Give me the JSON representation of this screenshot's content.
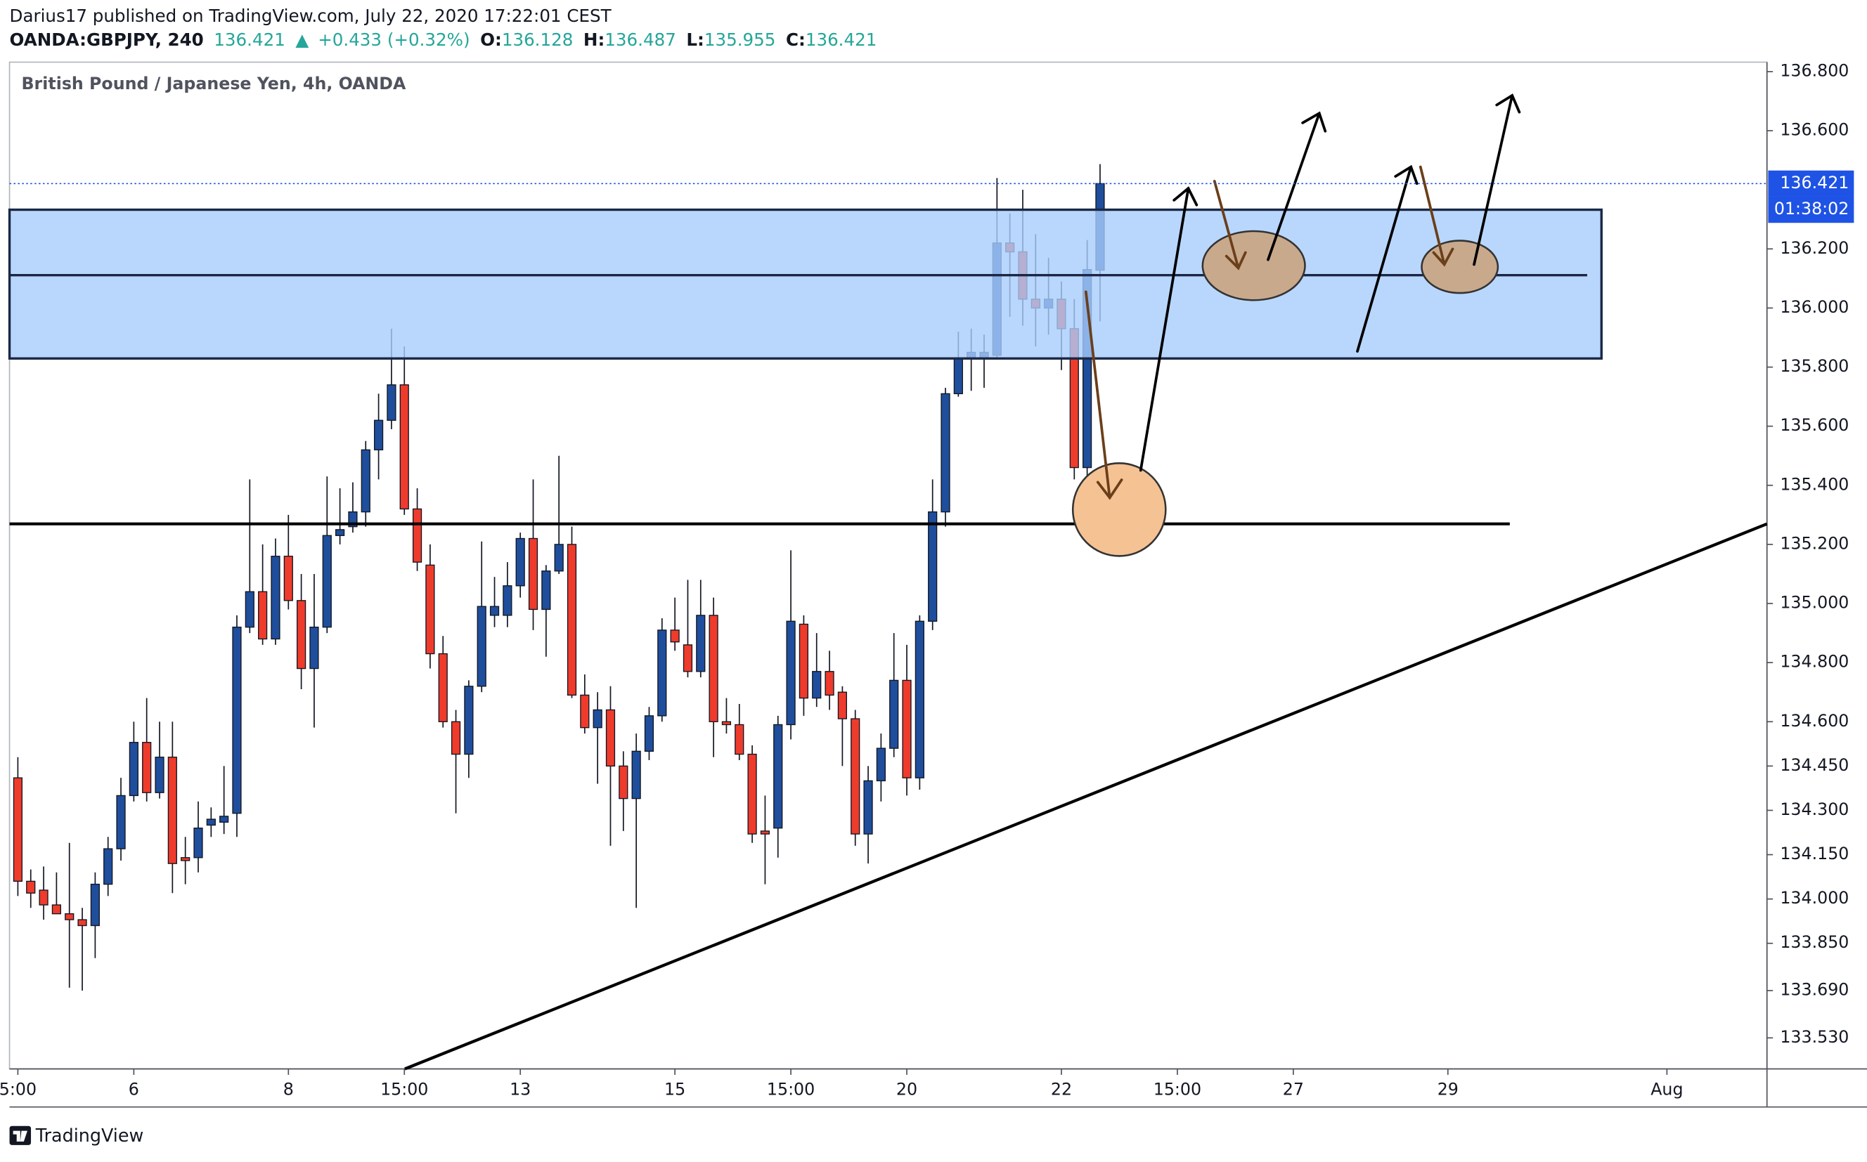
{
  "header": {
    "line1": "Darius17 published on TradingView.com, July 22, 2020 17:22:01 CEST",
    "symbol": "OANDA:GBPJPY, 240",
    "last": "136.421",
    "arrow": "▲",
    "change": "+0.433 (+0.32%)",
    "o_label": "O:",
    "o": "136.128",
    "h_label": "H:",
    "h": "136.487",
    "l_label": "L:",
    "l": "135.955",
    "c_label": "C:",
    "c": "136.421"
  },
  "footer": {
    "brand": "TradingView"
  },
  "chart_data": {
    "type": "candlestick",
    "title": "British Pound / Japanese Yen, 4h, OANDA",
    "up_color": "#1f4e9c",
    "down_color": "#ef3b2c",
    "open": [
      134.41,
      134.06,
      134.03,
      133.98,
      133.95,
      133.93,
      133.91,
      134.05,
      134.17,
      134.35,
      134.53,
      134.36,
      134.48,
      134.14,
      134.14,
      134.25,
      134.26,
      134.29,
      134.92,
      135.04,
      134.88,
      135.16,
      135.01,
      134.78,
      134.92,
      135.23,
      135.26,
      135.31,
      135.52,
      135.62,
      135.74,
      135.32,
      135.13,
      134.83,
      134.6,
      134.49,
      134.72,
      134.96,
      134.96,
      135.06,
      135.22,
      134.98,
      135.11,
      135.2,
      134.69,
      134.58,
      134.64,
      134.45,
      134.34,
      134.5,
      134.62,
      134.91,
      134.86,
      134.77,
      134.96,
      134.6,
      134.59,
      134.49,
      134.23,
      134.24,
      134.59,
      134.93,
      134.68,
      134.77,
      134.7,
      134.61,
      134.22,
      134.4,
      134.51,
      134.74,
      134.41,
      134.94,
      135.31,
      135.71,
      135.83,
      135.83,
      135.84,
      136.22,
      136.19,
      136.03,
      136.0,
      136.03,
      135.93,
      135.46,
      136.128
    ],
    "high": [
      134.48,
      134.1,
      134.11,
      134.09,
      134.19,
      133.97,
      134.09,
      134.21,
      134.41,
      134.6,
      134.68,
      134.6,
      134.6,
      134.21,
      134.33,
      134.31,
      134.45,
      134.96,
      135.42,
      135.2,
      135.22,
      135.3,
      135.1,
      135.1,
      135.43,
      135.39,
      135.41,
      135.55,
      135.71,
      135.93,
      135.87,
      135.39,
      135.2,
      134.89,
      134.64,
      134.74,
      135.21,
      135.09,
      135.14,
      135.24,
      135.42,
      135.13,
      135.5,
      135.26,
      134.76,
      134.7,
      134.72,
      134.5,
      134.56,
      134.65,
      134.95,
      135.02,
      135.08,
      135.08,
      135.02,
      134.68,
      134.66,
      134.52,
      134.35,
      134.62,
      135.18,
      134.96,
      134.9,
      134.84,
      134.72,
      134.64,
      134.45,
      134.56,
      134.9,
      134.86,
      134.96,
      135.42,
      135.73,
      135.92,
      135.93,
      135.91,
      136.44,
      136.32,
      136.4,
      136.25,
      136.17,
      136.09,
      136.03,
      136.23,
      136.487
    ],
    "low": [
      134.01,
      133.97,
      133.93,
      133.95,
      133.7,
      133.69,
      133.8,
      134.01,
      134.13,
      134.33,
      134.33,
      134.34,
      134.02,
      134.05,
      134.09,
      134.21,
      134.22,
      134.21,
      134.9,
      134.86,
      134.86,
      134.98,
      134.71,
      134.58,
      134.9,
      135.2,
      135.24,
      135.26,
      135.42,
      135.59,
      135.3,
      135.11,
      134.78,
      134.58,
      134.29,
      134.41,
      134.7,
      134.92,
      134.92,
      135.02,
      134.91,
      134.82,
      135.1,
      134.68,
      134.56,
      134.39,
      134.18,
      134.23,
      133.97,
      134.47,
      134.6,
      134.84,
      134.75,
      134.75,
      134.48,
      134.56,
      134.47,
      134.19,
      134.05,
      134.14,
      134.54,
      134.62,
      134.65,
      134.64,
      134.45,
      134.18,
      134.12,
      134.33,
      134.48,
      134.35,
      134.37,
      134.91,
      135.26,
      135.7,
      135.72,
      135.73,
      135.83,
      135.97,
      135.94,
      135.87,
      135.91,
      135.79,
      135.42,
      135.35,
      135.955
    ],
    "close": [
      134.06,
      134.02,
      133.98,
      133.95,
      133.93,
      133.91,
      134.05,
      134.17,
      134.35,
      134.53,
      134.36,
      134.48,
      134.12,
      134.13,
      134.24,
      134.27,
      134.28,
      134.92,
      135.04,
      134.88,
      135.16,
      135.01,
      134.78,
      134.92,
      135.23,
      135.25,
      135.31,
      135.52,
      135.62,
      135.74,
      135.32,
      135.14,
      134.83,
      134.6,
      134.49,
      134.72,
      134.99,
      134.99,
      135.06,
      135.22,
      134.98,
      135.11,
      135.2,
      134.69,
      134.58,
      134.64,
      134.45,
      134.34,
      134.5,
      134.62,
      134.91,
      134.87,
      134.77,
      134.96,
      134.6,
      134.59,
      134.49,
      134.22,
      134.22,
      134.59,
      134.94,
      134.68,
      134.77,
      134.69,
      134.61,
      134.22,
      134.4,
      134.51,
      134.74,
      134.41,
      134.94,
      135.31,
      135.71,
      135.83,
      135.85,
      135.85,
      136.22,
      136.19,
      136.03,
      136.0,
      136.03,
      135.93,
      135.46,
      136.13,
      136.421
    ],
    "ylim": [
      133.425,
      136.832
    ],
    "yticks": [
      {
        "value": 136.8,
        "label": "136.800"
      },
      {
        "value": 136.6,
        "label": "136.600"
      },
      {
        "value": 136.2,
        "label": "136.200"
      },
      {
        "value": 136.0,
        "label": "136.000"
      },
      {
        "value": 135.8,
        "label": "135.800"
      },
      {
        "value": 135.6,
        "label": "135.600"
      },
      {
        "value": 135.4,
        "label": "135.400"
      },
      {
        "value": 135.2,
        "label": "135.200"
      },
      {
        "value": 135.0,
        "label": "135.000"
      },
      {
        "value": 134.8,
        "label": "134.800"
      },
      {
        "value": 134.6,
        "label": "134.600"
      },
      {
        "value": 134.45,
        "label": "134.450"
      },
      {
        "value": 134.3,
        "label": "134.300"
      },
      {
        "value": 134.15,
        "label": "134.150"
      },
      {
        "value": 134.0,
        "label": "134.000"
      },
      {
        "value": 133.85,
        "label": "133.850"
      },
      {
        "value": 133.69,
        "label": "133.690"
      },
      {
        "value": 133.53,
        "label": "133.530"
      }
    ],
    "xticks": [
      {
        "value": 0,
        "label": "5:00"
      },
      {
        "value": 9,
        "label": "6"
      },
      {
        "value": 21,
        "label": "8"
      },
      {
        "value": 30,
        "label": "15:00"
      },
      {
        "value": 39,
        "label": "13"
      },
      {
        "value": 51,
        "label": "15"
      },
      {
        "value": 60,
        "label": "15:00"
      },
      {
        "value": 69,
        "label": "20"
      },
      {
        "value": 81,
        "label": "22"
      },
      {
        "value": 90,
        "label": "15:00"
      },
      {
        "value": 99,
        "label": "27"
      },
      {
        "value": 111,
        "label": "29"
      },
      {
        "value": 128,
        "label": "Aug"
      }
    ],
    "countdown": "01:38:02"
  }
}
